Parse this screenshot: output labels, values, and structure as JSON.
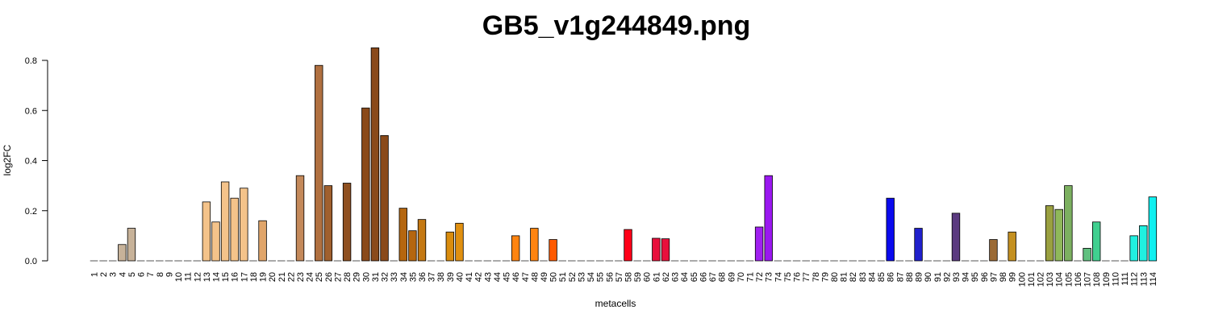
{
  "chart_data": {
    "type": "bar",
    "title": "GB5_v1g244849.png",
    "xlabel": "metacells",
    "ylabel": "log2FC",
    "ylim": [
      0,
      0.8
    ],
    "yticks": [
      "0.0",
      "0.2",
      "0.4",
      "0.6",
      "0.8"
    ],
    "grid": false,
    "categories": [
      "1",
      "2",
      "3",
      "4",
      "5",
      "6",
      "7",
      "8",
      "9",
      "10",
      "11",
      "12",
      "13",
      "14",
      "15",
      "16",
      "17",
      "18",
      "19",
      "20",
      "21",
      "22",
      "23",
      "24",
      "25",
      "26",
      "27",
      "28",
      "29",
      "30",
      "31",
      "32",
      "33",
      "34",
      "35",
      "36",
      "37",
      "38",
      "39",
      "40",
      "41",
      "42",
      "43",
      "44",
      "45",
      "46",
      "47",
      "48",
      "49",
      "50",
      "51",
      "52",
      "53",
      "54",
      "55",
      "56",
      "57",
      "58",
      "59",
      "60",
      "61",
      "62",
      "63",
      "64",
      "65",
      "66",
      "67",
      "68",
      "69",
      "70",
      "71",
      "72",
      "73",
      "74",
      "75",
      "76",
      "77",
      "78",
      "79",
      "80",
      "81",
      "82",
      "83",
      "84",
      "85",
      "86",
      "87",
      "88",
      "89",
      "90",
      "91",
      "92",
      "93",
      "94",
      "95",
      "96",
      "97",
      "98",
      "99",
      "100",
      "101",
      "102",
      "103",
      "104",
      "105",
      "106",
      "107",
      "108",
      "109",
      "110",
      "111",
      "112",
      "113",
      "114"
    ],
    "values": [
      0,
      0,
      0,
      0.065,
      0.13,
      0,
      0,
      0,
      0,
      0,
      0,
      0,
      0.235,
      0.155,
      0.315,
      0.25,
      0.29,
      0,
      0.16,
      0,
      0,
      0,
      0.34,
      0,
      0.78,
      0.3,
      0,
      0.31,
      0,
      0.61,
      0.85,
      0.5,
      0,
      0.21,
      0.12,
      0.165,
      0,
      0,
      0.115,
      0.15,
      0,
      0,
      0,
      0,
      0,
      0.1,
      0,
      0.13,
      0,
      0.085,
      0,
      0,
      0,
      0,
      0,
      0,
      0,
      0.125,
      0,
      0,
      0.09,
      0.088,
      0,
      0,
      0,
      0,
      0,
      0,
      0,
      0,
      0,
      0.135,
      0.34,
      0,
      0,
      0,
      0,
      0,
      0,
      0,
      0,
      0,
      0,
      0,
      0,
      0.25,
      0,
      0,
      0.13,
      0,
      0,
      0,
      0.19,
      0,
      0,
      0,
      0.085,
      0,
      0.115,
      0,
      0,
      0,
      0.22,
      0.205,
      0.3,
      0,
      0.05,
      0.155,
      0,
      0,
      0,
      0.1,
      0.14,
      0.255
    ],
    "colors": [
      "#c7b299",
      "#c7b299",
      "#c7b299",
      "#c7b299",
      "#c7b299",
      "#c7b299",
      "#c7b299",
      "#c7b299",
      "#c7b299",
      "#c7b299",
      "#c7b299",
      "#c7b299",
      "#f4c38a",
      "#f4c38a",
      "#f4c38a",
      "#f4c38a",
      "#f4c38a",
      "#f4c38a",
      "#e0a56a",
      "#c4895a",
      "#c4895a",
      "#c4895a",
      "#c4895a",
      "#b07040",
      "#b07040",
      "#a0602e",
      "#a0602e",
      "#8f5020",
      "#8f5020",
      "#8a4a1a",
      "#8a4a1a",
      "#8a4a1a",
      "#b5660f",
      "#b5660f",
      "#b5660f",
      "#c47812",
      "#c47812",
      "#d98c0e",
      "#d98c0e",
      "#e09010",
      "#e09010",
      "#e09010",
      "#e09010",
      "#e09010",
      "#ff8410",
      "#ff8410",
      "#ff8410",
      "#ff8410",
      "#ff6a00",
      "#ff5a00",
      "#ff5a00",
      "#ff5a00",
      "#ff5a00",
      "#ff5a00",
      "#ff5a00",
      "#ff5a00",
      "#ff5a00",
      "#ff0018",
      "#ff0018",
      "#ff0018",
      "#e8103c",
      "#e8103c",
      "#e8103c",
      "#e8103c",
      "#e8103c",
      "#e8103c",
      "#e8103c",
      "#e8103c",
      "#e8103c",
      "#e8103c",
      "#a020f0",
      "#a020f0",
      "#9a18f0",
      "#9a18f0",
      "#9a18f0",
      "#9a18f0",
      "#9a18f0",
      "#9a18f0",
      "#9a18f0",
      "#9a18f0",
      "#9a18f0",
      "#9a18f0",
      "#9a18f0",
      "#9a18f0",
      "#9a18f0",
      "#0a0aee",
      "#0a0aee",
      "#0a0aee",
      "#2020cc",
      "#2020cc",
      "#2020cc",
      "#2020cc",
      "#5b3a80",
      "#5b3a80",
      "#5b3a80",
      "#5b3a80",
      "#9b6a35",
      "#9b6a35",
      "#c49020",
      "#c49020",
      "#c49020",
      "#9aa040",
      "#9aa040",
      "#8fb85a",
      "#7cb060",
      "#7cb060",
      "#60c080",
      "#40d090",
      "#40d090",
      "#30e0c0",
      "#30e0c0",
      "#20f0e0",
      "#20f0e0",
      "#10f0f0"
    ]
  }
}
